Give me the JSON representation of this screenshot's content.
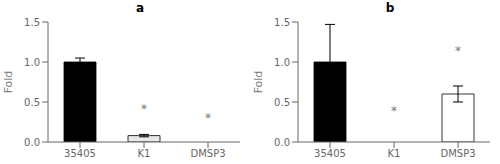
{
  "chart_data": [
    {
      "type": "bar",
      "title": "a",
      "categories": [
        "35405",
        "K1",
        "DMSP3"
      ],
      "values": [
        1.0,
        0.08,
        null
      ],
      "errors": [
        0.05,
        0.015,
        null
      ],
      "colors": [
        "black",
        "#e8e8e8",
        null
      ],
      "annotations": [
        {
          "text": "*",
          "x": "K1",
          "y": 0.3
        },
        {
          "text": "*",
          "x": "DMSP3",
          "y": 0.19
        }
      ],
      "ylabel": "Fold",
      "ylim": [
        0.0,
        1.5
      ],
      "yticks": [
        {
          "value": 0.0,
          "label": "0.0"
        },
        {
          "value": 0.5,
          "label": "0.5"
        },
        {
          "value": 1.0,
          "label": "1.0"
        },
        {
          "value": 1.5,
          "label": "1.5"
        }
      ]
    },
    {
      "type": "bar",
      "title": "b",
      "categories": [
        "35405",
        "K1",
        "DMSP3"
      ],
      "values": [
        1.0,
        null,
        0.6
      ],
      "errors": [
        0.47,
        null,
        0.1
      ],
      "colors": [
        "black",
        null,
        "white"
      ],
      "annotations": [
        {
          "text": "*",
          "x": "K1",
          "y": 0.28
        },
        {
          "text": "*",
          "x": "DMSP3",
          "y": 1.02
        }
      ],
      "ylabel": "Fold",
      "ylim": [
        0.0,
        1.5
      ],
      "yticks": [
        {
          "value": 0.0,
          "label": "0.0"
        },
        {
          "value": 0.5,
          "label": "0.5"
        },
        {
          "value": 1.0,
          "label": "1.0"
        },
        {
          "value": 1.5,
          "label": "1.5"
        }
      ]
    }
  ]
}
